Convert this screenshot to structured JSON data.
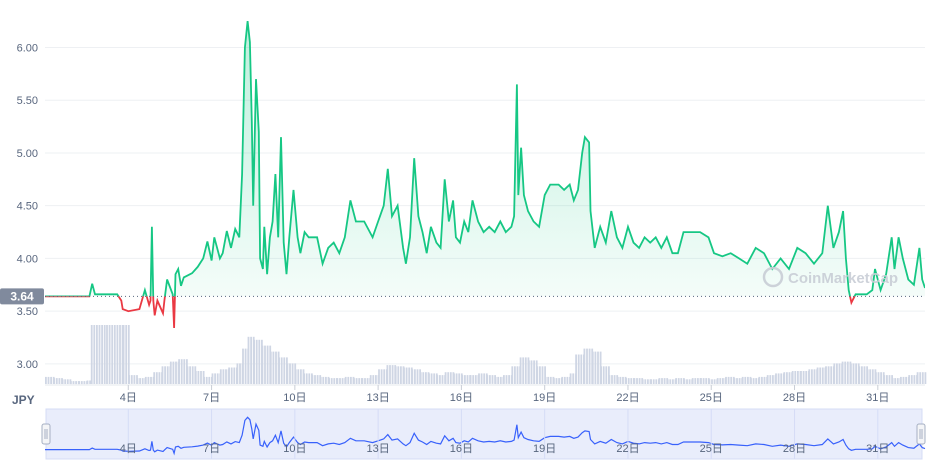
{
  "chart_data": {
    "type": "line",
    "title": "",
    "xlabel": "",
    "ylabel": "",
    "currency_label": "JPY",
    "ylim": [
      2.8,
      6.45
    ],
    "y_ticks": [
      "6.00",
      "5.50",
      "5.00",
      "4.50",
      "4.00",
      "3.50",
      "3.00"
    ],
    "y_tick_values": [
      6.0,
      5.5,
      5.0,
      4.5,
      4.0,
      3.5,
      3.0
    ],
    "baseline_value": 3.64,
    "baseline_label": "3.64",
    "x_ticks": [
      "4日",
      "7日",
      "10日",
      "13日",
      "16日",
      "19日",
      "22日",
      "25日",
      "28日",
      "31日"
    ],
    "x_tick_days": [
      4,
      7,
      10,
      13,
      16,
      19,
      22,
      25,
      28,
      31
    ],
    "xlim": [
      1,
      32.7
    ],
    "watermark": "CoinMarketCap",
    "colors": {
      "up": "#16c784",
      "down": "#ea3943",
      "volume": "#cfd6e4",
      "navigator": "#3861fb"
    },
    "series": [
      {
        "values": [
          [
            1.0,
            3.64
          ],
          [
            2.0,
            3.64
          ],
          [
            2.6,
            3.64
          ],
          [
            2.7,
            3.76
          ],
          [
            2.8,
            3.66
          ],
          [
            3.2,
            3.66
          ],
          [
            3.6,
            3.66
          ],
          [
            3.75,
            3.6
          ],
          [
            3.8,
            3.52
          ],
          [
            4.0,
            3.5
          ],
          [
            4.4,
            3.52
          ],
          [
            4.6,
            3.7
          ],
          [
            4.75,
            3.56
          ],
          [
            4.8,
            3.6
          ],
          [
            4.85,
            4.3
          ],
          [
            4.9,
            3.6
          ],
          [
            4.95,
            3.46
          ],
          [
            5.05,
            3.6
          ],
          [
            5.25,
            3.48
          ],
          [
            5.3,
            3.6
          ],
          [
            5.4,
            3.8
          ],
          [
            5.6,
            3.66
          ],
          [
            5.65,
            3.34
          ],
          [
            5.7,
            3.85
          ],
          [
            5.8,
            3.9
          ],
          [
            5.9,
            3.74
          ],
          [
            6.0,
            3.82
          ],
          [
            6.3,
            3.86
          ],
          [
            6.5,
            3.92
          ],
          [
            6.7,
            4.0
          ],
          [
            6.85,
            4.16
          ],
          [
            7.0,
            3.98
          ],
          [
            7.1,
            4.2
          ],
          [
            7.2,
            4.1
          ],
          [
            7.3,
            4.0
          ],
          [
            7.4,
            4.05
          ],
          [
            7.55,
            4.26
          ],
          [
            7.7,
            4.1
          ],
          [
            7.85,
            4.28
          ],
          [
            8.0,
            4.2
          ],
          [
            8.1,
            4.8
          ],
          [
            8.2,
            6.0
          ],
          [
            8.3,
            6.25
          ],
          [
            8.38,
            6.05
          ],
          [
            8.45,
            5.3
          ],
          [
            8.5,
            4.5
          ],
          [
            8.6,
            5.7
          ],
          [
            8.7,
            5.2
          ],
          [
            8.75,
            4.0
          ],
          [
            8.85,
            3.9
          ],
          [
            8.9,
            4.3
          ],
          [
            9.0,
            3.85
          ],
          [
            9.1,
            4.2
          ],
          [
            9.2,
            4.35
          ],
          [
            9.3,
            4.8
          ],
          [
            9.4,
            4.2
          ],
          [
            9.5,
            5.15
          ],
          [
            9.6,
            4.15
          ],
          [
            9.7,
            3.85
          ],
          [
            9.8,
            4.2
          ],
          [
            9.95,
            4.65
          ],
          [
            10.1,
            4.2
          ],
          [
            10.2,
            4.05
          ],
          [
            10.35,
            4.25
          ],
          [
            10.5,
            4.2
          ],
          [
            10.8,
            4.2
          ],
          [
            11.0,
            3.95
          ],
          [
            11.2,
            4.1
          ],
          [
            11.4,
            4.15
          ],
          [
            11.6,
            4.05
          ],
          [
            11.8,
            4.2
          ],
          [
            12.0,
            4.55
          ],
          [
            12.2,
            4.35
          ],
          [
            12.5,
            4.35
          ],
          [
            12.8,
            4.2
          ],
          [
            13.0,
            4.35
          ],
          [
            13.2,
            4.5
          ],
          [
            13.35,
            4.85
          ],
          [
            13.5,
            4.4
          ],
          [
            13.7,
            4.5
          ],
          [
            13.9,
            4.1
          ],
          [
            14.0,
            3.95
          ],
          [
            14.15,
            4.2
          ],
          [
            14.3,
            4.95
          ],
          [
            14.45,
            4.4
          ],
          [
            14.6,
            4.25
          ],
          [
            14.75,
            4.05
          ],
          [
            14.9,
            4.3
          ],
          [
            15.1,
            4.15
          ],
          [
            15.25,
            4.1
          ],
          [
            15.4,
            4.75
          ],
          [
            15.55,
            4.35
          ],
          [
            15.7,
            4.55
          ],
          [
            15.8,
            4.2
          ],
          [
            15.95,
            4.15
          ],
          [
            16.1,
            4.35
          ],
          [
            16.25,
            4.25
          ],
          [
            16.4,
            4.55
          ],
          [
            16.6,
            4.35
          ],
          [
            16.8,
            4.25
          ],
          [
            17.0,
            4.3
          ],
          [
            17.2,
            4.25
          ],
          [
            17.4,
            4.35
          ],
          [
            17.6,
            4.25
          ],
          [
            17.8,
            4.3
          ],
          [
            17.9,
            4.4
          ],
          [
            18.0,
            5.65
          ],
          [
            18.05,
            4.6
          ],
          [
            18.15,
            5.05
          ],
          [
            18.25,
            4.6
          ],
          [
            18.4,
            4.45
          ],
          [
            18.6,
            4.35
          ],
          [
            18.8,
            4.3
          ],
          [
            19.0,
            4.6
          ],
          [
            19.2,
            4.7
          ],
          [
            19.5,
            4.7
          ],
          [
            19.7,
            4.65
          ],
          [
            19.9,
            4.7
          ],
          [
            20.05,
            4.55
          ],
          [
            20.2,
            4.65
          ],
          [
            20.35,
            5.0
          ],
          [
            20.45,
            5.15
          ],
          [
            20.6,
            5.1
          ],
          [
            20.65,
            4.45
          ],
          [
            20.8,
            4.1
          ],
          [
            21.0,
            4.3
          ],
          [
            21.2,
            4.15
          ],
          [
            21.4,
            4.45
          ],
          [
            21.6,
            4.2
          ],
          [
            21.8,
            4.1
          ],
          [
            22.0,
            4.3
          ],
          [
            22.2,
            4.15
          ],
          [
            22.4,
            4.1
          ],
          [
            22.6,
            4.2
          ],
          [
            22.8,
            4.15
          ],
          [
            23.0,
            4.2
          ],
          [
            23.2,
            4.1
          ],
          [
            23.4,
            4.2
          ],
          [
            23.6,
            4.05
          ],
          [
            23.8,
            4.05
          ],
          [
            24.0,
            4.25
          ],
          [
            24.3,
            4.25
          ],
          [
            24.6,
            4.25
          ],
          [
            24.9,
            4.2
          ],
          [
            25.1,
            4.05
          ],
          [
            25.4,
            4.02
          ],
          [
            25.7,
            4.05
          ],
          [
            26.0,
            4.0
          ],
          [
            26.3,
            3.95
          ],
          [
            26.6,
            4.1
          ],
          [
            26.9,
            4.05
          ],
          [
            27.2,
            3.9
          ],
          [
            27.5,
            4.0
          ],
          [
            27.8,
            3.9
          ],
          [
            28.1,
            4.1
          ],
          [
            28.4,
            4.05
          ],
          [
            28.7,
            3.95
          ],
          [
            29.0,
            4.05
          ],
          [
            29.2,
            4.5
          ],
          [
            29.4,
            4.1
          ],
          [
            29.6,
            4.25
          ],
          [
            29.75,
            4.45
          ],
          [
            29.85,
            4.0
          ],
          [
            29.95,
            3.7
          ],
          [
            30.05,
            3.58
          ],
          [
            30.2,
            3.66
          ],
          [
            30.6,
            3.66
          ],
          [
            30.8,
            3.7
          ],
          [
            30.9,
            3.9
          ],
          [
            31.1,
            3.7
          ],
          [
            31.3,
            3.85
          ],
          [
            31.5,
            4.2
          ],
          [
            31.6,
            3.9
          ],
          [
            31.75,
            4.2
          ],
          [
            31.9,
            4.0
          ],
          [
            32.1,
            3.8
          ],
          [
            32.3,
            3.75
          ],
          [
            32.5,
            4.1
          ],
          [
            32.6,
            3.8
          ],
          [
            32.7,
            3.72
          ]
        ]
      }
    ],
    "volume": [
      [
        1.0,
        0.12
      ],
      [
        1.3,
        0.1
      ],
      [
        1.6,
        0.08
      ],
      [
        1.9,
        0.05
      ],
      [
        2.2,
        0.05
      ],
      [
        2.5,
        0.06
      ],
      [
        2.65,
        1.0
      ],
      [
        3.2,
        1.0
      ],
      [
        3.8,
        1.0
      ],
      [
        4.0,
        0.15
      ],
      [
        4.3,
        0.1
      ],
      [
        4.6,
        0.12
      ],
      [
        4.9,
        0.2
      ],
      [
        5.2,
        0.3
      ],
      [
        5.5,
        0.38
      ],
      [
        5.8,
        0.42
      ],
      [
        6.1,
        0.3
      ],
      [
        6.4,
        0.22
      ],
      [
        6.7,
        0.12
      ],
      [
        7.0,
        0.18
      ],
      [
        7.3,
        0.25
      ],
      [
        7.6,
        0.28
      ],
      [
        7.9,
        0.35
      ],
      [
        8.1,
        0.6
      ],
      [
        8.3,
        0.8
      ],
      [
        8.5,
        0.75
      ],
      [
        8.8,
        0.65
      ],
      [
        9.1,
        0.55
      ],
      [
        9.4,
        0.45
      ],
      [
        9.7,
        0.35
      ],
      [
        10.0,
        0.25
      ],
      [
        10.3,
        0.18
      ],
      [
        10.6,
        0.15
      ],
      [
        10.9,
        0.12
      ],
      [
        11.2,
        0.1
      ],
      [
        11.5,
        0.1
      ],
      [
        11.8,
        0.12
      ],
      [
        12.1,
        0.1
      ],
      [
        12.4,
        0.1
      ],
      [
        12.7,
        0.15
      ],
      [
        13.0,
        0.25
      ],
      [
        13.3,
        0.32
      ],
      [
        13.6,
        0.3
      ],
      [
        13.9,
        0.28
      ],
      [
        14.2,
        0.25
      ],
      [
        14.5,
        0.2
      ],
      [
        14.8,
        0.18
      ],
      [
        15.1,
        0.15
      ],
      [
        15.4,
        0.2
      ],
      [
        15.7,
        0.18
      ],
      [
        16.0,
        0.15
      ],
      [
        16.3,
        0.15
      ],
      [
        16.6,
        0.18
      ],
      [
        16.9,
        0.15
      ],
      [
        17.2,
        0.12
      ],
      [
        17.5,
        0.15
      ],
      [
        17.8,
        0.3
      ],
      [
        18.1,
        0.45
      ],
      [
        18.4,
        0.4
      ],
      [
        18.7,
        0.3
      ],
      [
        19.0,
        0.12
      ],
      [
        19.3,
        0.1
      ],
      [
        19.6,
        0.12
      ],
      [
        19.9,
        0.18
      ],
      [
        20.1,
        0.5
      ],
      [
        20.4,
        0.6
      ],
      [
        20.7,
        0.55
      ],
      [
        21.0,
        0.3
      ],
      [
        21.3,
        0.15
      ],
      [
        21.6,
        0.12
      ],
      [
        21.9,
        0.1
      ],
      [
        22.2,
        0.1
      ],
      [
        22.5,
        0.08
      ],
      [
        22.8,
        0.08
      ],
      [
        23.1,
        0.1
      ],
      [
        23.4,
        0.08
      ],
      [
        23.7,
        0.1
      ],
      [
        24.0,
        0.08
      ],
      [
        24.3,
        0.1
      ],
      [
        24.6,
        0.1
      ],
      [
        24.9,
        0.08
      ],
      [
        25.2,
        0.1
      ],
      [
        25.5,
        0.12
      ],
      [
        25.8,
        0.1
      ],
      [
        26.1,
        0.12
      ],
      [
        26.4,
        0.1
      ],
      [
        26.7,
        0.12
      ],
      [
        27.0,
        0.15
      ],
      [
        27.3,
        0.18
      ],
      [
        27.6,
        0.2
      ],
      [
        27.9,
        0.22
      ],
      [
        28.2,
        0.22
      ],
      [
        28.5,
        0.25
      ],
      [
        28.8,
        0.28
      ],
      [
        29.1,
        0.3
      ],
      [
        29.4,
        0.35
      ],
      [
        29.7,
        0.38
      ],
      [
        30.0,
        0.35
      ],
      [
        30.3,
        0.3
      ],
      [
        30.6,
        0.25
      ],
      [
        30.9,
        0.2
      ],
      [
        31.2,
        0.15
      ],
      [
        31.5,
        0.1
      ],
      [
        31.8,
        0.12
      ],
      [
        32.1,
        0.15
      ],
      [
        32.4,
        0.2
      ],
      [
        32.7,
        0.25
      ]
    ]
  }
}
